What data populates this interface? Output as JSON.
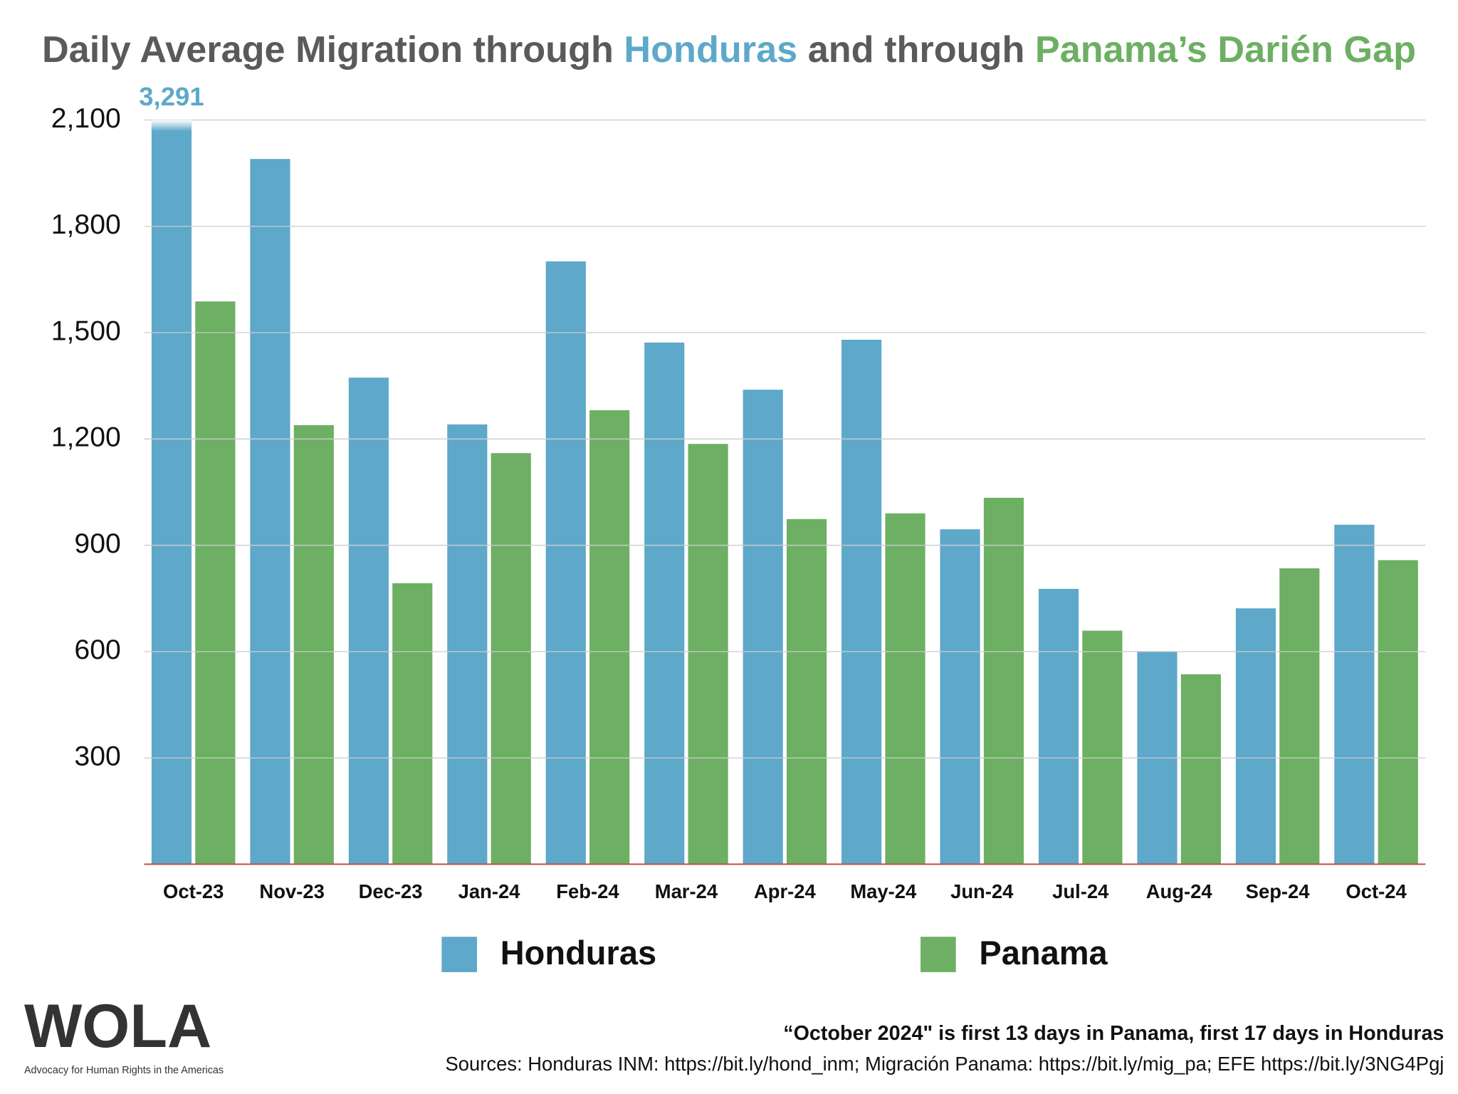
{
  "chart_data": {
    "type": "bar",
    "title_parts": [
      "Daily Average Migration through ",
      "Honduras",
      " and through ",
      "Panama’s Darién Gap"
    ],
    "categories": [
      "Oct-23",
      "Nov-23",
      "Dec-23",
      "Jan-24",
      "Feb-24",
      "Mar-24",
      "Apr-24",
      "May-24",
      "Jun-24",
      "Jul-24",
      "Aug-24",
      "Sep-24",
      "Oct-24"
    ],
    "series": [
      {
        "name": "Honduras",
        "color": "#5ea8c9",
        "values": [
          3291,
          1990,
          1373,
          1241,
          1701,
          1472,
          1339,
          1480,
          945,
          777,
          601,
          722,
          958
        ],
        "value_labels": [
          "3,291",
          null,
          null,
          null,
          null,
          null,
          null,
          null,
          null,
          null,
          null,
          null,
          null
        ]
      },
      {
        "name": "Panama",
        "color": "#6daf63",
        "values": [
          1588,
          1239,
          793,
          1160,
          1281,
          1186,
          974,
          990,
          1034,
          659,
          536,
          835,
          858
        ]
      }
    ],
    "ylim": [
      0,
      2100
    ],
    "yticks": [
      300,
      600,
      900,
      {
        "value": 1200,
        "label": "1,200"
      },
      {
        "value": 1500,
        "label": "1,500"
      },
      {
        "value": 1800,
        "label": "1,800"
      },
      {
        "value": 2100,
        "label": "2,100"
      }
    ],
    "grid": true,
    "legend": "bottom",
    "note": "“October 2024\" is first 13 days in Panama, first 17 days in Honduras",
    "sources": "Sources: Honduras INM: https://bit.ly/hond_inm; Migración Panama: https://bit.ly/mig_pa; EFE https://bit.ly/3NG4Pgj"
  },
  "logo": {
    "name": "WOLA",
    "tagline": "Advocacy for Human Rights in the Americas"
  }
}
